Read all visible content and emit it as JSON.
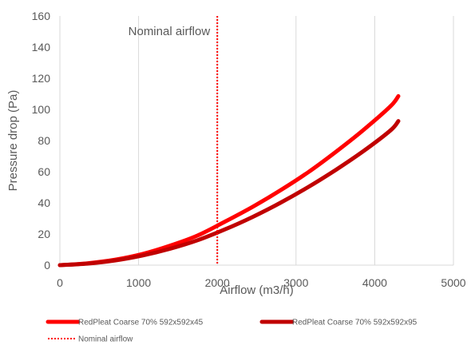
{
  "chart_data": {
    "type": "line",
    "title": "",
    "xlabel": "Airflow (m3/h)",
    "ylabel": "Pressure drop (Pa)",
    "xlim": [
      0,
      5000
    ],
    "ylim": [
      0,
      160
    ],
    "xticks": [
      0,
      1000,
      2000,
      3000,
      4000,
      5000
    ],
    "yticks": [
      0,
      20,
      40,
      60,
      80,
      100,
      120,
      140,
      160
    ],
    "xtick_labels": [
      "0",
      "1000",
      "2000",
      "3000",
      "4000",
      "5000"
    ],
    "ytick_labels": [
      "0",
      "20",
      "40",
      "60",
      "80",
      "100",
      "120",
      "140",
      "160"
    ],
    "grid": "vertical",
    "legend_position": "bottom",
    "series": [
      {
        "name": "RedPleat Coarse 70% 592x592x45",
        "color": "#ff0000",
        "x": [
          0,
          350,
          700,
          1050,
          1400,
          1750,
          2100,
          2450,
          2800,
          3150,
          3500,
          3850,
          4200,
          4300
        ],
        "y": [
          0,
          1.2,
          3.5,
          7.2,
          12.5,
          19,
          28,
          37.5,
          48,
          59.5,
          72.5,
          86.5,
          102,
          108.5
        ]
      },
      {
        "name": "RedPleat Coarse 70% 592x592x95",
        "color": "#c00000",
        "x": [
          0,
          350,
          700,
          1050,
          1400,
          1750,
          2100,
          2450,
          2800,
          3150,
          3500,
          3850,
          4200,
          4300
        ],
        "y": [
          0,
          1,
          3,
          6.2,
          10.5,
          16,
          23,
          31,
          40,
          50,
          61,
          73,
          86.5,
          92.5
        ]
      }
    ],
    "reference_line": {
      "name": "Nominal airflow",
      "x": 2000,
      "color": "#ff0000",
      "style": "dotted"
    },
    "annotation": {
      "text": "Nominal airflow"
    }
  }
}
